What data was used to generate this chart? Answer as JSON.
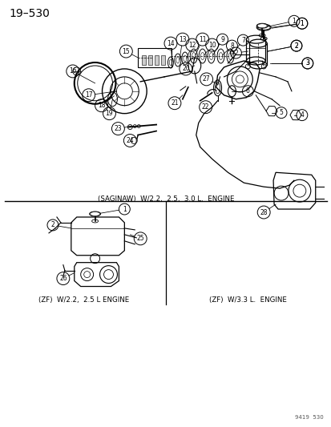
{
  "title_text": "19–530",
  "page_id": "9419  530",
  "bg_color": "#ffffff",
  "top_label": "(SAGINAW)  W/2.2,  2.5,  3.0 L.  ENGINE",
  "bottom_left_label": "(ZF)  W/2.2,  2.5 L ENGINE",
  "bottom_right_label": "(ZF)  W/3.3 L.  ENGINE"
}
